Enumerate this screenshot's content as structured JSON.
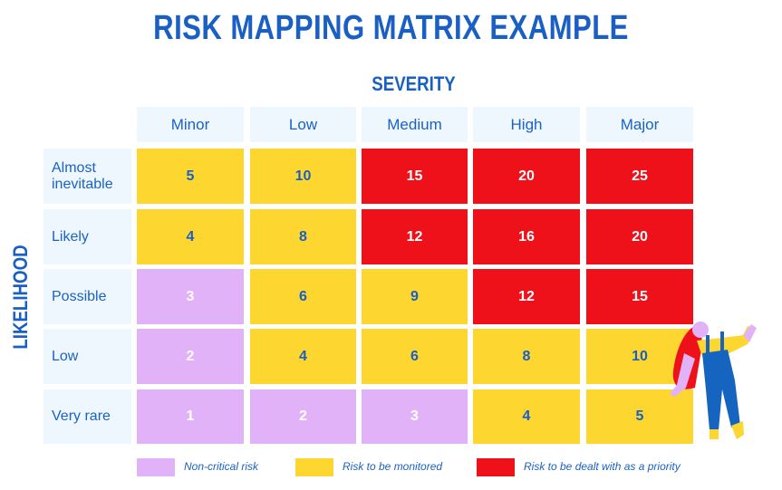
{
  "title": "RISK MAPPING MATRIX EXAMPLE",
  "x_axis_label": "SEVERITY",
  "y_axis_label": "LIKELIHOOD",
  "columns": [
    "Minor",
    "Low",
    "Medium",
    "High",
    "Major"
  ],
  "rows": [
    {
      "label": "Almost inevitable",
      "values": [
        5,
        10,
        15,
        20,
        25
      ],
      "levels": [
        "mid",
        "mid",
        "high",
        "high",
        "high"
      ]
    },
    {
      "label": "Likely",
      "values": [
        4,
        8,
        12,
        16,
        20
      ],
      "levels": [
        "mid",
        "mid",
        "high",
        "high",
        "high"
      ]
    },
    {
      "label": "Possible",
      "values": [
        3,
        6,
        9,
        12,
        15
      ],
      "levels": [
        "low",
        "mid",
        "mid",
        "high",
        "high"
      ]
    },
    {
      "label": "Low",
      "values": [
        2,
        4,
        6,
        8,
        10
      ],
      "levels": [
        "low",
        "mid",
        "mid",
        "mid",
        "mid"
      ]
    },
    {
      "label": "Very rare",
      "values": [
        1,
        2,
        3,
        4,
        5
      ],
      "levels": [
        "low",
        "low",
        "low",
        "mid",
        "mid"
      ]
    }
  ],
  "legend": [
    {
      "level": "low",
      "label": "Non-critical risk",
      "color": "#e2b2f9"
    },
    {
      "level": "mid",
      "label": "Risk to be monitored",
      "color": "#fdd630"
    },
    {
      "level": "high",
      "label": "Risk to be dealt with as a priority",
      "color": "#ee111a"
    }
  ],
  "illustration": "woman-in-overalls-leaning-on-matrix"
}
